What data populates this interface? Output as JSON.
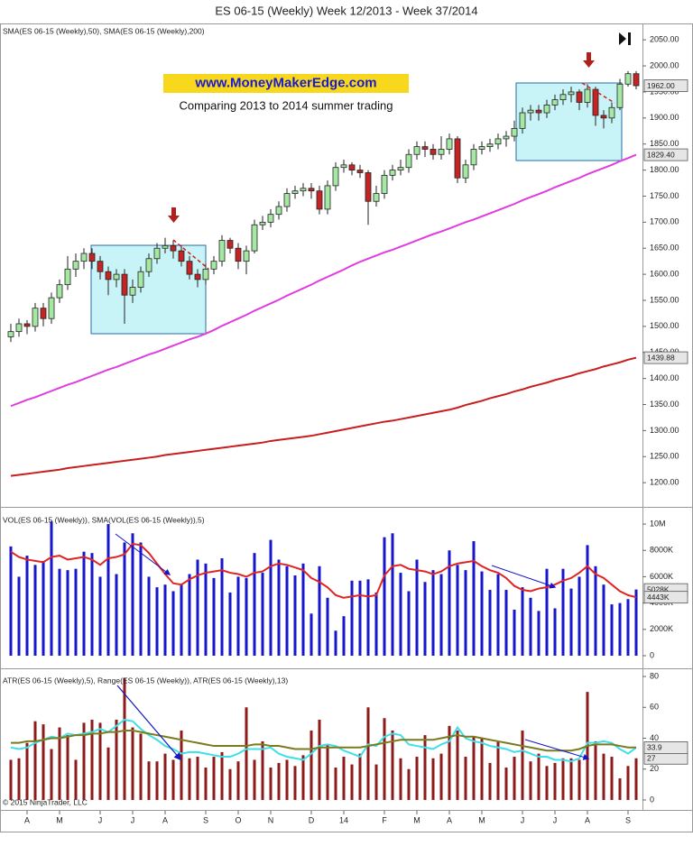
{
  "chart_data": [
    {
      "type": "candlestick",
      "title": "ES 06-15 (Weekly)  Week 12/2013 - Week 37/2014",
      "legend": "SMA(ES 06-15 (Weekly),50), SMA(ES 06-15 (Weekly),200)",
      "annotations": [
        "www.MoneyMakerEdge.com",
        "Comparing 2013 to 2014 summer trading"
      ],
      "up_color": "#a4e8a4",
      "down_color": "#c42424",
      "open": [
        1480,
        1490,
        1505,
        1500,
        1535,
        1515,
        1555,
        1580,
        1610,
        1625,
        1640,
        1625,
        1605,
        1590,
        1600,
        1560,
        1575,
        1605,
        1630,
        1650,
        1655,
        1645,
        1625,
        1600,
        1590,
        1610,
        1625,
        1665,
        1650,
        1625,
        1645,
        1695,
        1700,
        1715,
        1730,
        1755,
        1760,
        1765,
        1760,
        1725,
        1770,
        1805,
        1810,
        1800,
        1795,
        1740,
        1755,
        1790,
        1800,
        1805,
        1830,
        1845,
        1840,
        1830,
        1840,
        1860,
        1785,
        1810,
        1840,
        1845,
        1850,
        1860,
        1865,
        1880,
        1910,
        1915,
        1910,
        1925,
        1935,
        1945,
        1950,
        1930,
        1955,
        1905,
        1900,
        1920,
        1965,
        1985
      ],
      "high": [
        1505,
        1515,
        1512,
        1545,
        1545,
        1565,
        1590,
        1635,
        1640,
        1650,
        1650,
        1635,
        1615,
        1610,
        1610,
        1590,
        1615,
        1640,
        1660,
        1670,
        1665,
        1655,
        1635,
        1610,
        1620,
        1635,
        1675,
        1670,
        1660,
        1655,
        1705,
        1712,
        1725,
        1740,
        1765,
        1770,
        1775,
        1775,
        1770,
        1780,
        1815,
        1820,
        1815,
        1810,
        1800,
        1770,
        1800,
        1810,
        1820,
        1840,
        1855,
        1855,
        1850,
        1865,
        1870,
        1865,
        1820,
        1850,
        1855,
        1860,
        1870,
        1875,
        1895,
        1920,
        1925,
        1925,
        1935,
        1945,
        1955,
        1960,
        1955,
        1965,
        1960,
        1915,
        1930,
        1975,
        1990,
        1990
      ],
      "low": [
        1470,
        1480,
        1485,
        1490,
        1500,
        1505,
        1545,
        1570,
        1595,
        1610,
        1610,
        1590,
        1560,
        1575,
        1505,
        1545,
        1565,
        1595,
        1620,
        1640,
        1630,
        1615,
        1590,
        1575,
        1580,
        1600,
        1615,
        1640,
        1610,
        1600,
        1640,
        1685,
        1690,
        1705,
        1720,
        1745,
        1750,
        1745,
        1715,
        1715,
        1760,
        1795,
        1790,
        1785,
        1695,
        1730,
        1745,
        1780,
        1790,
        1795,
        1820,
        1825,
        1820,
        1820,
        1830,
        1775,
        1775,
        1800,
        1830,
        1835,
        1840,
        1845,
        1855,
        1870,
        1895,
        1895,
        1900,
        1915,
        1925,
        1930,
        1915,
        1920,
        1885,
        1880,
        1890,
        1915,
        1960,
        1955
      ],
      "close": [
        1490,
        1505,
        1500,
        1535,
        1515,
        1555,
        1580,
        1610,
        1625,
        1640,
        1625,
        1605,
        1590,
        1600,
        1560,
        1575,
        1605,
        1630,
        1650,
        1655,
        1645,
        1625,
        1600,
        1590,
        1610,
        1625,
        1665,
        1650,
        1625,
        1645,
        1695,
        1700,
        1715,
        1730,
        1755,
        1760,
        1765,
        1760,
        1725,
        1770,
        1805,
        1810,
        1800,
        1795,
        1740,
        1755,
        1790,
        1800,
        1805,
        1830,
        1845,
        1840,
        1830,
        1840,
        1860,
        1785,
        1810,
        1840,
        1845,
        1850,
        1860,
        1865,
        1880,
        1910,
        1915,
        1910,
        1925,
        1935,
        1945,
        1950,
        1930,
        1955,
        1905,
        1900,
        1920,
        1965,
        1985,
        1962
      ],
      "last_label": "1962.00",
      "series": [
        {
          "color": "#e03ce0",
          "last_label": "1829.40",
          "values": [
            1347,
            1353,
            1359,
            1364,
            1370,
            1376,
            1382,
            1388,
            1393,
            1399,
            1405,
            1411,
            1417,
            1422,
            1428,
            1434,
            1440,
            1446,
            1451,
            1457,
            1463,
            1469,
            1475,
            1480,
            1486,
            1493,
            1501,
            1508,
            1515,
            1522,
            1530,
            1537,
            1544,
            1551,
            1559,
            1566,
            1573,
            1580,
            1588,
            1595,
            1602,
            1609,
            1617,
            1624,
            1630,
            1636,
            1642,
            1647,
            1653,
            1659,
            1665,
            1671,
            1677,
            1682,
            1688,
            1694,
            1700,
            1705,
            1711,
            1717,
            1723,
            1729,
            1735,
            1742,
            1748,
            1754,
            1760,
            1767,
            1773,
            1779,
            1785,
            1792,
            1798,
            1804,
            1810,
            1817,
            1823,
            1829.4
          ]
        },
        {
          "color": "#c81e1e",
          "last_label": "1439.88",
          "values": [
            1213,
            1215,
            1217,
            1219,
            1221,
            1223,
            1225,
            1228,
            1230,
            1232,
            1234,
            1236,
            1238,
            1240,
            1242,
            1244,
            1246,
            1248,
            1250,
            1253,
            1255,
            1257,
            1259,
            1261,
            1263,
            1265,
            1267,
            1269,
            1271,
            1273,
            1275,
            1277,
            1280,
            1282,
            1284,
            1286,
            1288,
            1290,
            1293,
            1296,
            1299,
            1302,
            1305,
            1308,
            1311,
            1314,
            1317,
            1319,
            1322,
            1325,
            1328,
            1331,
            1334,
            1337,
            1340,
            1344,
            1349,
            1353,
            1357,
            1362,
            1366,
            1370,
            1375,
            1379,
            1384,
            1388,
            1392,
            1397,
            1401,
            1405,
            1410,
            1414,
            1418,
            1423,
            1427,
            1431,
            1436,
            1439.88
          ]
        }
      ],
      "ylim": [
        1157,
        2078
      ],
      "yticks": [
        {
          "value": 1200,
          "label": "1200.00"
        },
        {
          "value": 1250,
          "label": "1250.00"
        },
        {
          "value": 1300,
          "label": "1300.00"
        },
        {
          "value": 1350,
          "label": "1350.00"
        },
        {
          "value": 1400,
          "label": "1400.00"
        },
        {
          "value": 1450,
          "label": "1450.00"
        },
        {
          "value": 1500,
          "label": "1500.00"
        },
        {
          "value": 1550,
          "label": "1550.00"
        },
        {
          "value": 1600,
          "label": "1600.00"
        },
        {
          "value": 1650,
          "label": "1650.00"
        },
        {
          "value": 1700,
          "label": "1700.00"
        },
        {
          "value": 1750,
          "label": "1750.00"
        },
        {
          "value": 1800,
          "label": "1800.00"
        },
        {
          "value": 1850,
          "label": "1850.00"
        },
        {
          "value": 1900,
          "label": "1900.00"
        },
        {
          "value": 1950,
          "label": "1950.00"
        },
        {
          "value": 2000,
          "label": "2000.00"
        },
        {
          "value": 2050,
          "label": "2050.00"
        }
      ]
    },
    {
      "type": "bar",
      "legend": "VOL(ES 06-15 (Weekly)), SMA(VOL(ES 06-15 (Weekly)),5)",
      "color": "#1616cc",
      "last_label": "5028K",
      "values": [
        8300,
        6000,
        7600,
        6900,
        7200,
        10200,
        6600,
        6500,
        6600,
        7900,
        7800,
        6000,
        10000,
        6200,
        8600,
        9300,
        8600,
        6000,
        5200,
        5400,
        4900,
        5400,
        6200,
        7300,
        7000,
        5900,
        7400,
        4800,
        6000,
        5900,
        7800,
        6300,
        8800,
        7300,
        6800,
        6100,
        7000,
        3200,
        6800,
        4400,
        1900,
        3000,
        5700,
        5700,
        5800,
        4800,
        9000,
        9300,
        6300,
        4900,
        7300,
        5600,
        6500,
        6200,
        8000,
        6900,
        6500,
        8700,
        6400,
        5000,
        6200,
        5000,
        3500,
        5200,
        4400,
        3400,
        6600,
        3600,
        6600,
        5100,
        6000,
        8400,
        6800,
        5400,
        3900,
        4000,
        4300,
        5028
      ],
      "series": [
        {
          "color": "#e02424",
          "last_label": "4443K",
          "values": [
            7900,
            7500,
            7300,
            7200,
            7100,
            7500,
            7600,
            7300,
            7400,
            7500,
            7300,
            6900,
            7400,
            7500,
            7700,
            8500,
            8400,
            7800,
            7000,
            6200,
            5500,
            5400,
            5800,
            6100,
            6300,
            6400,
            6500,
            6300,
            6200,
            6000,
            6300,
            6400,
            6800,
            7000,
            6900,
            6700,
            6500,
            5900,
            5600,
            5200,
            4600,
            4400,
            4500,
            4600,
            4500,
            4600,
            6100,
            6800,
            6900,
            6600,
            6500,
            6400,
            6200,
            6400,
            6800,
            7000,
            7100,
            7200,
            6800,
            6500,
            6300,
            5900,
            5300,
            5000,
            4900,
            5100,
            5200,
            5400,
            5700,
            5900,
            6300,
            6800,
            6200,
            5900,
            5400,
            4900,
            4600,
            4443
          ]
        }
      ],
      "ylim": [
        -890,
        11100
      ],
      "yticks": [
        0,
        {
          "value": 2000,
          "label": "2000K"
        },
        {
          "value": 4000,
          "label": "4000K"
        },
        {
          "value": 6000,
          "label": "6000K"
        },
        {
          "value": 8000,
          "label": "8000K"
        },
        {
          "value": 10000,
          "label": "10M"
        }
      ]
    },
    {
      "type": "bar",
      "legend": "ATR(ES 06-15 (Weekly),5), Range(ES 06-15 (Weekly)), ATR(ES 06-15 (Weekly),13)",
      "copyright": "© 2015 NinjaTrader, LLC",
      "color": "#8e1a1a",
      "last_label": "27",
      "values": [
        26,
        27,
        37,
        51,
        49,
        33,
        47,
        42,
        26,
        50,
        52,
        50,
        34,
        52,
        79,
        47,
        43,
        25,
        25,
        30,
        26,
        45,
        27,
        28,
        21,
        28,
        31,
        20,
        25,
        60,
        26,
        38,
        21,
        24,
        26,
        22,
        29,
        45,
        52,
        36,
        21,
        28,
        23,
        30,
        60,
        23,
        53,
        45,
        27,
        20,
        28,
        42,
        27,
        30,
        48,
        45,
        28,
        41,
        40,
        24,
        38,
        21,
        28,
        45,
        25,
        30,
        22,
        24,
        27,
        27,
        26,
        70,
        38,
        30,
        28,
        14,
        22,
        27
      ],
      "series": [
        {
          "color": "#3ce0e8",
          "last_label": "33.9",
          "values": [
            34,
            33,
            34,
            37,
            39,
            41,
            40,
            43,
            42,
            43,
            44,
            46,
            44,
            48,
            52,
            51,
            46,
            42,
            39,
            35,
            33,
            30,
            31,
            31,
            30,
            29,
            28,
            28,
            30,
            33,
            33,
            33,
            34,
            30,
            28,
            27,
            26,
            30,
            35,
            36,
            35,
            32,
            30,
            28,
            36,
            35,
            41,
            43,
            42,
            36,
            35,
            34,
            33,
            36,
            38,
            47,
            40,
            38,
            37,
            35,
            34,
            33,
            31,
            32,
            30,
            28,
            28,
            26,
            26,
            25,
            27,
            37,
            37,
            38,
            37,
            33,
            30,
            33.9
          ]
        },
        {
          "color": "#7a7a1e",
          "values": [
            37,
            37,
            38,
            38,
            39,
            40,
            40,
            41,
            42,
            42,
            43,
            43,
            44,
            44,
            45,
            45,
            44,
            43,
            42,
            41,
            40,
            39,
            38,
            37,
            36,
            35,
            35,
            35,
            35,
            35,
            36,
            36,
            35,
            35,
            34,
            33,
            33,
            33,
            34,
            34,
            34,
            34,
            34,
            34,
            35,
            36,
            37,
            38,
            39,
            39,
            39,
            39,
            39,
            40,
            41,
            42,
            41,
            41,
            40,
            39,
            38,
            37,
            36,
            35,
            34,
            33,
            32,
            32,
            32,
            32,
            33,
            35,
            36,
            36,
            36,
            35,
            34,
            34
          ]
        }
      ],
      "ylim": [
        -4.7,
        84.7
      ],
      "yticks": [
        0,
        20,
        40,
        60,
        80
      ],
      "categories": [
        null,
        null,
        "A",
        null,
        null,
        null,
        "M",
        null,
        null,
        null,
        null,
        "J",
        null,
        null,
        null,
        "J",
        null,
        null,
        null,
        "A",
        null,
        null,
        null,
        null,
        "S",
        null,
        null,
        null,
        "O",
        null,
        null,
        null,
        "N",
        null,
        null,
        null,
        null,
        "D",
        null,
        null,
        null,
        "14",
        null,
        null,
        null,
        null,
        "F",
        null,
        null,
        null,
        "M",
        null,
        null,
        null,
        "A",
        null,
        null,
        null,
        "M",
        null,
        null,
        null,
        null,
        "J",
        null,
        null,
        null,
        "J",
        null,
        null,
        null,
        "A",
        null,
        null,
        null,
        null,
        "S",
        null
      ]
    }
  ]
}
